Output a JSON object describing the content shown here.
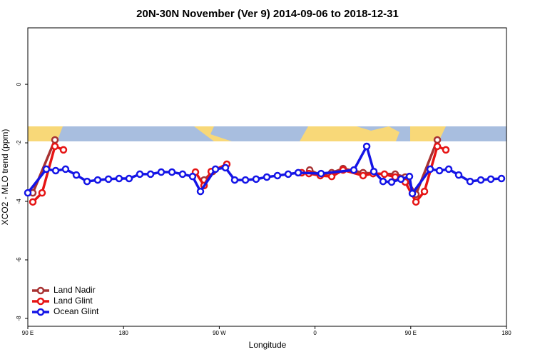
{
  "chart_data": {
    "type": "line",
    "title": "20N-30N November (Ver 9)   2014-09-06 to 2018-12-31",
    "x_label": "Longitude",
    "y_label": "XCO2 - MLO trend (ppm)",
    "xlim": [
      90,
      540
    ],
    "ylim": [
      -8.27,
      1.93
    ],
    "xticks": [
      {
        "value": 90,
        "label": "90 E"
      },
      180,
      {
        "value": 270,
        "label": "90 W"
      },
      {
        "value": 360,
        "label": "0"
      },
      {
        "value": 450,
        "label": "90 E"
      },
      {
        "value": 540,
        "label": "180"
      }
    ],
    "yticks": [
      0,
      -2,
      -4,
      -6,
      -8
    ],
    "legend": "bottom-left",
    "series": [
      {
        "name": "Land Nadir",
        "color": "#a83232",
        "x": [
          94.7,
          115.5,
          null,
          255.7,
          263.8,
          null,
          355,
          365,
          375.7,
          386.4,
          405.2,
          414.6,
          435.4,
          444.8,
          454.9,
          475
        ],
        "values": [
          -3.71,
          -1.9,
          null,
          -3.27,
          -2.98,
          null,
          -2.93,
          -3.1,
          -3.02,
          -2.88,
          -3.02,
          -3.05,
          -3.07,
          -3.17,
          -3.76,
          -1.9
        ]
      },
      {
        "name": "Land Glint",
        "color": "#e61414",
        "x": [
          94.7,
          103.4,
          115.5,
          123.5,
          null,
          247.6,
          255.7,
          262.4,
          277.1,
          null,
          347.5,
          354.3,
          365,
          375.7,
          386.4,
          405.2,
          414.6,
          425.3,
          435.4,
          444.8,
          454.9,
          462.9,
          475,
          483
        ],
        "values": [
          -4.02,
          -3.71,
          -2.12,
          -2.24,
          null,
          -3.0,
          -3.46,
          -2.98,
          -2.73,
          null,
          -3.02,
          -3.05,
          -3.12,
          -3.15,
          -2.93,
          -3.12,
          -3.05,
          -3.07,
          -3.17,
          -3.34,
          -4.02,
          -3.66,
          -2.12,
          -2.24
        ]
      },
      {
        "name": "Ocean Glint",
        "color": "#1414e6",
        "x": [
          90,
          107.4,
          116.2,
          125.5,
          135.6,
          145.7,
          155.7,
          165.8,
          175.8,
          185.2,
          195.3,
          205.4,
          215.4,
          225.5,
          235.5,
          244.9,
          252.3,
          266.4,
          275.8,
          284.5,
          294.6,
          304.6,
          314.7,
          324.7,
          334.8,
          344.2,
          365.7,
          396.5,
          408.6,
          415.3,
          424,
          432,
          440.8,
          448.8,
          451.5,
          468.3,
          477,
          485.7,
          495.1,
          505.8,
          515.9,
          525.3,
          535.3
        ],
        "values": [
          -3.71,
          -2.9,
          -2.95,
          -2.9,
          -3.1,
          -3.32,
          -3.27,
          -3.24,
          -3.22,
          -3.22,
          -3.07,
          -3.07,
          -3.0,
          -3.0,
          -3.07,
          -3.15,
          -3.66,
          -2.9,
          -2.85,
          -3.27,
          -3.27,
          -3.24,
          -3.17,
          -3.12,
          -3.07,
          -3.02,
          -3.05,
          -2.93,
          -2.12,
          -2.98,
          -3.32,
          -3.34,
          -3.24,
          -3.15,
          -3.73,
          -2.9,
          -2.95,
          -2.9,
          -3.1,
          -3.32,
          -3.27,
          -3.24,
          -3.22
        ]
      }
    ]
  }
}
